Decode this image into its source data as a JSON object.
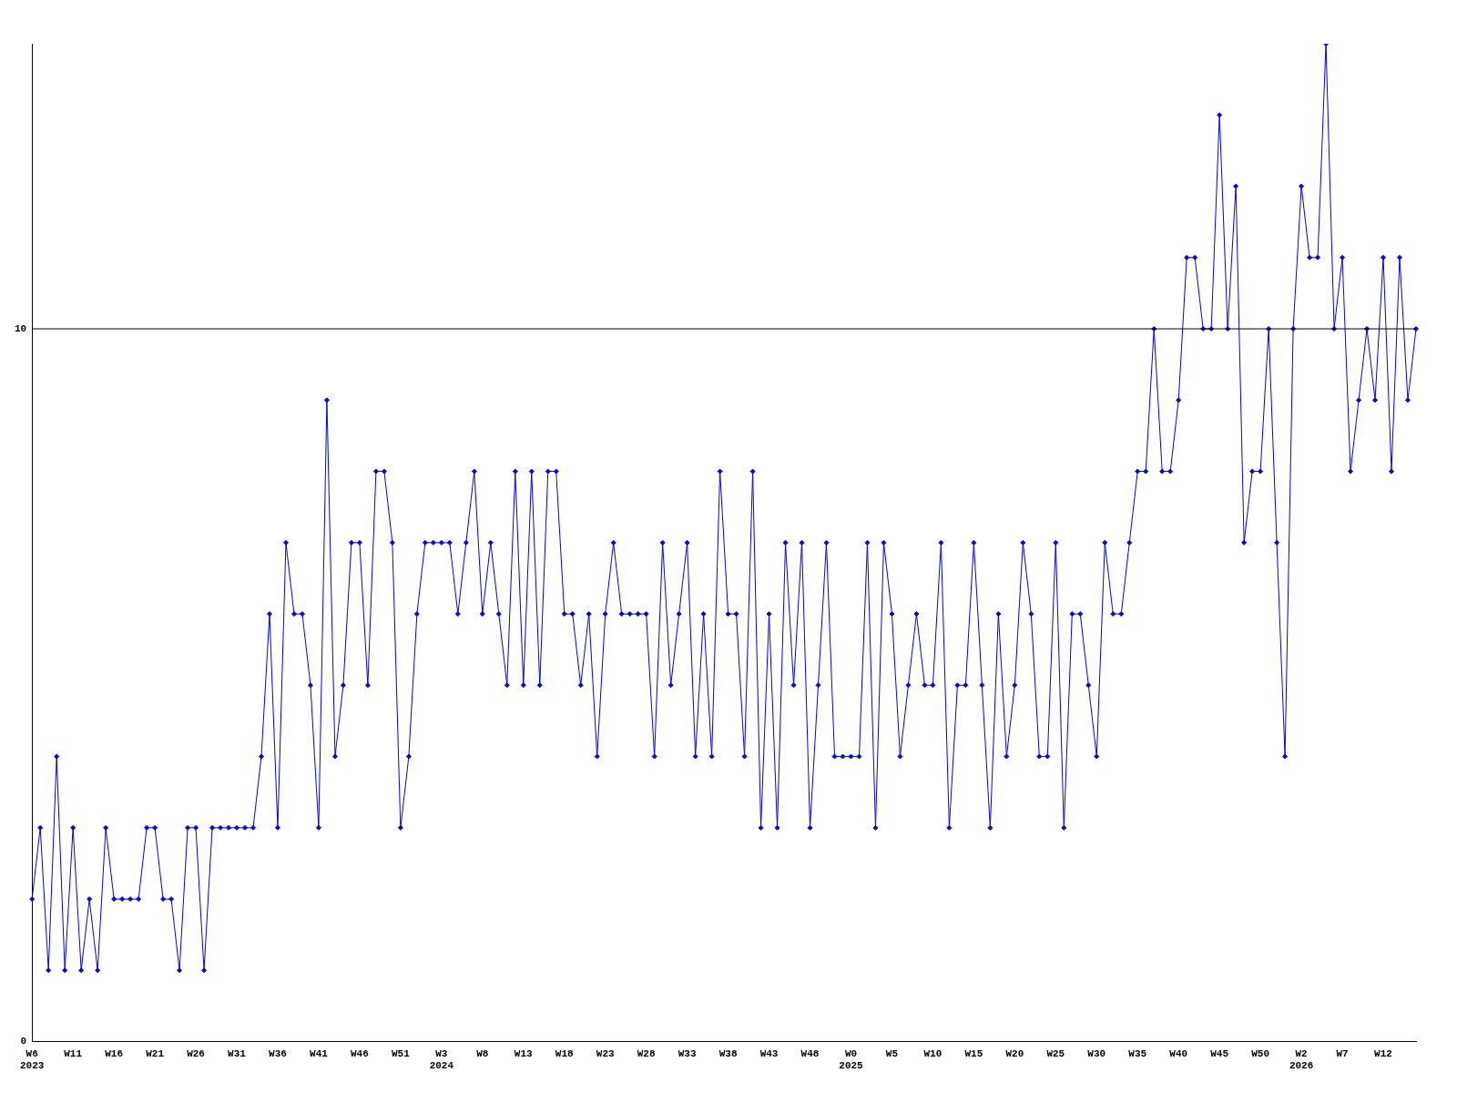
{
  "chart_data": {
    "type": "line",
    "categories": [
      "W6\n2023",
      null,
      null,
      null,
      null,
      "W11",
      null,
      null,
      null,
      null,
      "W16",
      null,
      null,
      null,
      null,
      "W21",
      null,
      null,
      null,
      null,
      "W26",
      null,
      null,
      null,
      null,
      "W31",
      null,
      null,
      null,
      null,
      "W36",
      null,
      null,
      null,
      null,
      "W41",
      null,
      null,
      null,
      null,
      "W46",
      null,
      null,
      null,
      null,
      "W51",
      null,
      null,
      null,
      null,
      "W3\n2024",
      null,
      null,
      null,
      null,
      "W8",
      null,
      null,
      null,
      null,
      "W13",
      null,
      null,
      null,
      null,
      "W18",
      null,
      null,
      null,
      null,
      "W23",
      null,
      null,
      null,
      null,
      "W28",
      null,
      null,
      null,
      null,
      "W33",
      null,
      null,
      null,
      null,
      "W38",
      null,
      null,
      null,
      null,
      "W43",
      null,
      null,
      null,
      null,
      "W48",
      null,
      null,
      null,
      null,
      "W0\n2025",
      null,
      null,
      null,
      null,
      "W5",
      null,
      null,
      null,
      null,
      "W10",
      null,
      null,
      null,
      null,
      "W15",
      null,
      null,
      null,
      null,
      "W20",
      null,
      null,
      null,
      null,
      "W25",
      null,
      null,
      null,
      null,
      "W30",
      null,
      null,
      null,
      null,
      "W35",
      null,
      null,
      null,
      null,
      "W40",
      null,
      null,
      null,
      null,
      "W45",
      null,
      null,
      null,
      null,
      "W50",
      null,
      null,
      null,
      null,
      "W2\n2026",
      null,
      null,
      null,
      null,
      "W7",
      null,
      null,
      null,
      null,
      "W12",
      null,
      null,
      null,
      null
    ],
    "series": [
      {
        "color": "#0000ff",
        "values": [
          2,
          3,
          1,
          4,
          1,
          3,
          1,
          2,
          1,
          3,
          2,
          2,
          2,
          2,
          3,
          3,
          2,
          2,
          1,
          3,
          3,
          1,
          3,
          3,
          3,
          3,
          3,
          3,
          4,
          6,
          3,
          7,
          6,
          6,
          5,
          3,
          9,
          4,
          5,
          7,
          7,
          5,
          8,
          8,
          7,
          3,
          4,
          6,
          7,
          7,
          7,
          7,
          6,
          7,
          8,
          6,
          7,
          6,
          5,
          8,
          5,
          8,
          5,
          8,
          8,
          6,
          6,
          5,
          6,
          4,
          6,
          7,
          6,
          6,
          6,
          6,
          4,
          7,
          5,
          6,
          7,
          4,
          6,
          4,
          8,
          6,
          6,
          4,
          8,
          3,
          6,
          3,
          7,
          5,
          7,
          3,
          5,
          7,
          4,
          4,
          4,
          4,
          7,
          3,
          7,
          6,
          4,
          5,
          6,
          5,
          5,
          7,
          3,
          5,
          5,
          7,
          5,
          3,
          6,
          4,
          5,
          7,
          6,
          4,
          4,
          7,
          3,
          6,
          6,
          5,
          4,
          7,
          6,
          6,
          7,
          8,
          8,
          10,
          8,
          8,
          9,
          11,
          11,
          10,
          10,
          13,
          10,
          12,
          7,
          8,
          8,
          10,
          7,
          4,
          10,
          12,
          11,
          11,
          14,
          10,
          11,
          8,
          9,
          10,
          9,
          11,
          8,
          11,
          9,
          10
        ]
      }
    ],
    "ylim": [
      0,
      14
    ],
    "yticks": [
      0,
      10
    ],
    "ref_lines": [
      {
        "axis": "y",
        "value": 10,
        "color": "#000000"
      }
    ],
    "grid": false,
    "legend": false,
    "marker": "diamond",
    "line_style": "solid"
  }
}
